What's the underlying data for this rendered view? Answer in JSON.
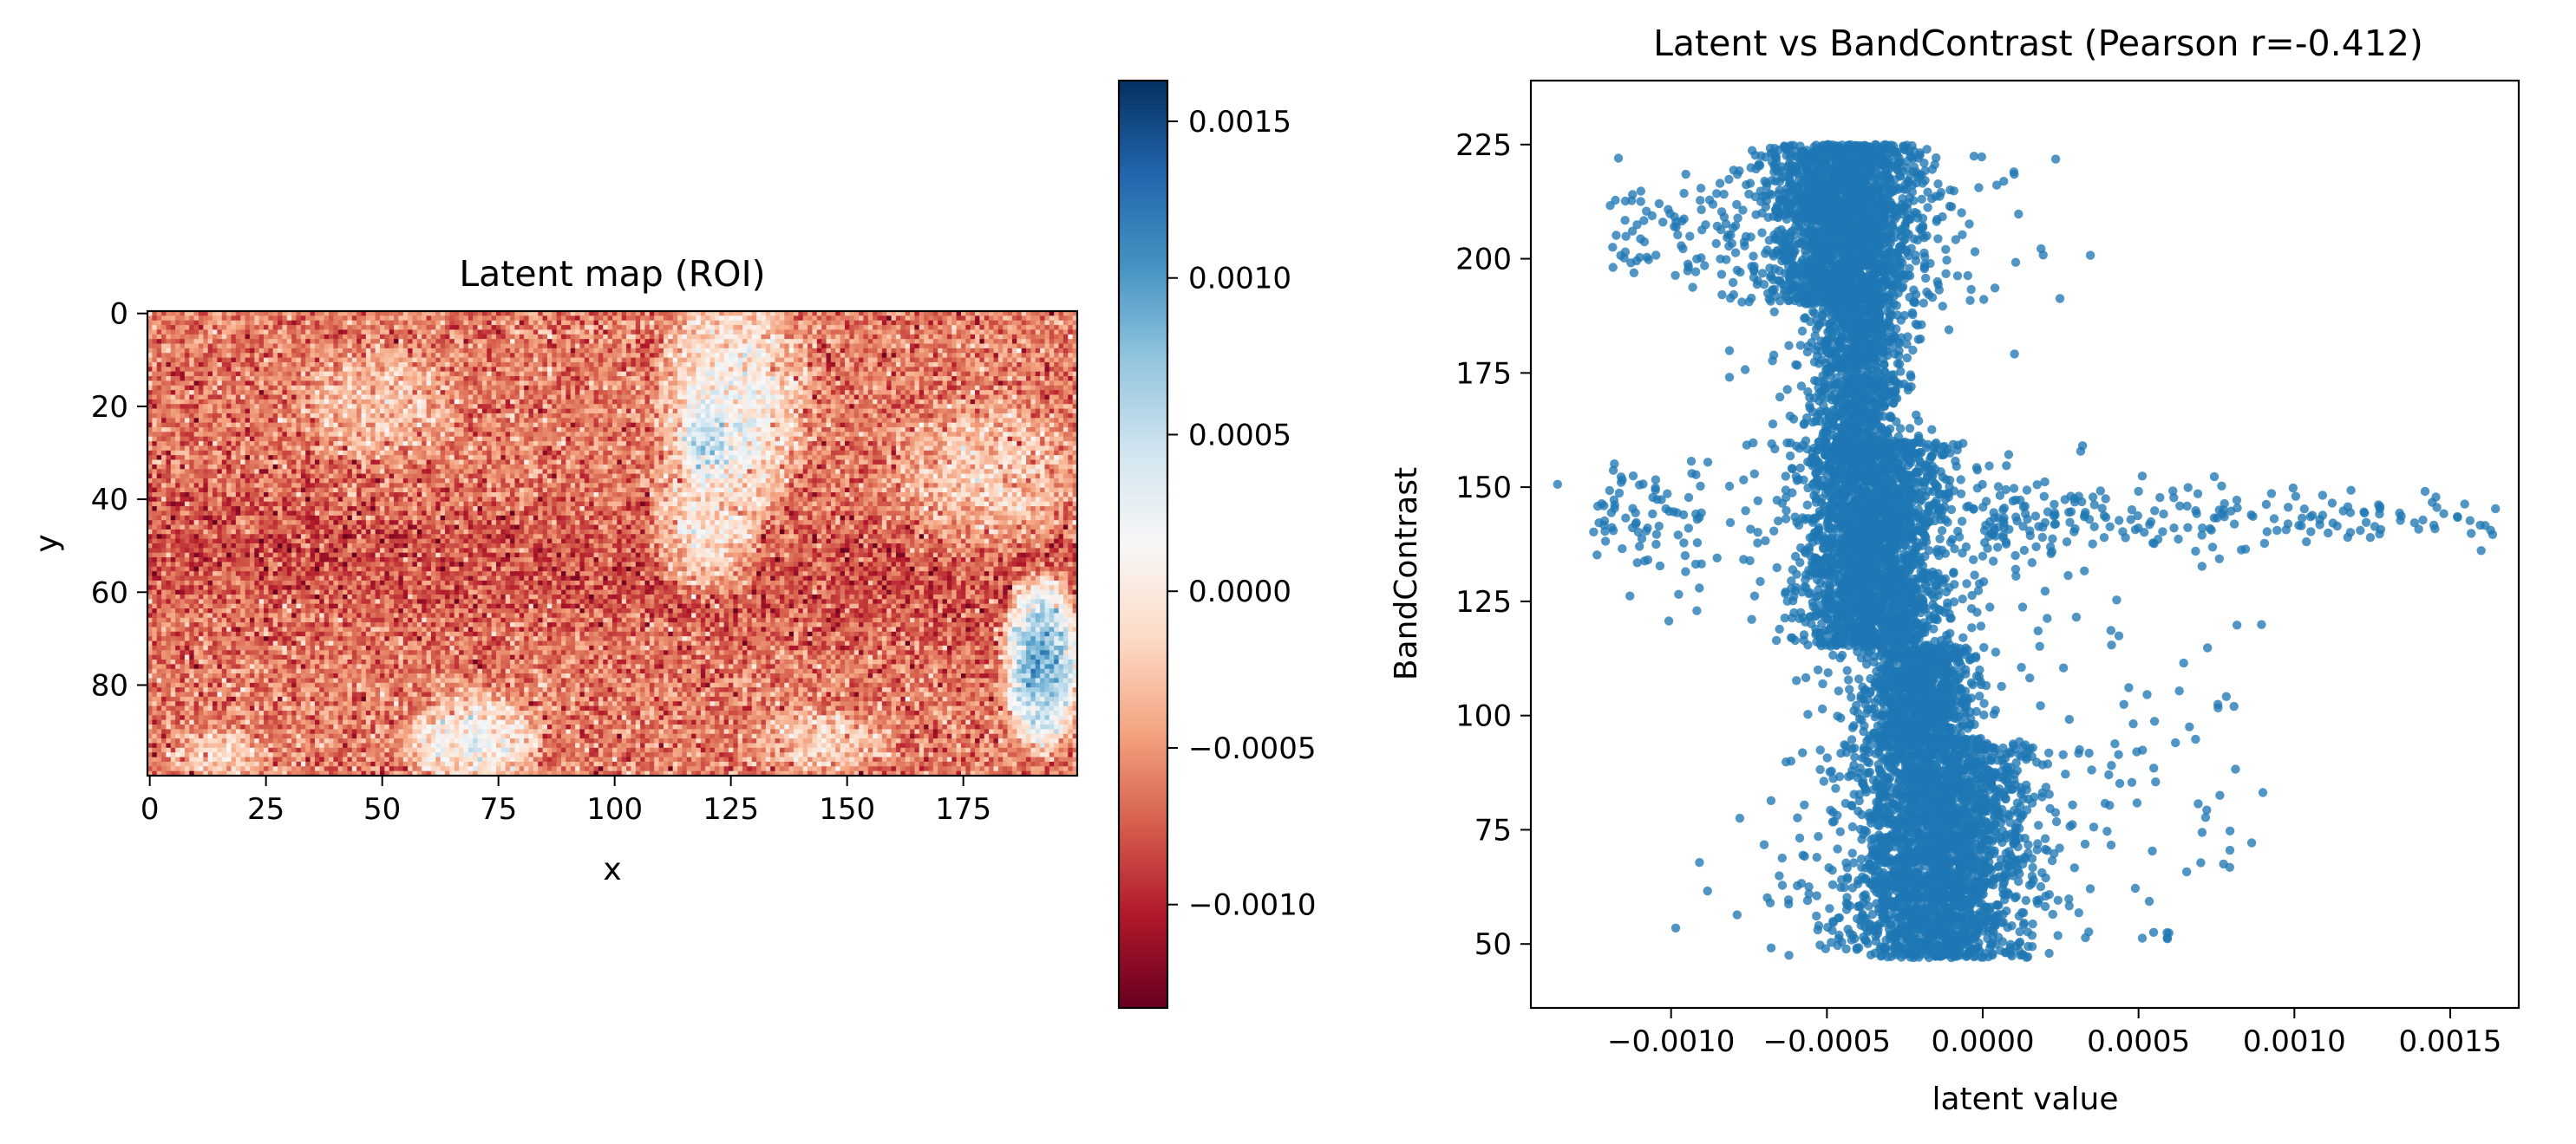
{
  "chart_data": [
    {
      "type": "heatmap",
      "title": "Latent map (ROI)",
      "xlabel": "x",
      "ylabel": "y",
      "x_range": [
        0,
        199
      ],
      "y_range": [
        0,
        99
      ],
      "y_axis_inverted": true,
      "x_ticks": [
        "0",
        "25",
        "50",
        "75",
        "100",
        "125",
        "150",
        "175"
      ],
      "y_ticks": [
        "0",
        "20",
        "40",
        "60",
        "80"
      ],
      "colormap": "RdBu",
      "colormap_stops": [
        "#67001f",
        "#b2182b",
        "#d6604d",
        "#f4a582",
        "#fddbc7",
        "#f7f7f7",
        "#d1e5f0",
        "#92c5de",
        "#4393c3",
        "#2166ac",
        "#053061"
      ],
      "color_range": [
        -0.00133,
        0.00163
      ],
      "colorbar_ticks": [
        "−0.0010",
        "−0.0005",
        "0.0000",
        "0.0005",
        "0.0010",
        "0.0015"
      ],
      "colorbar_tick_values": [
        -0.001,
        -0.0005,
        0.0,
        0.0005,
        0.001,
        0.0015
      ],
      "grid": false,
      "regions": [
        {
          "description": "near-zero / white",
          "x": [
            105,
            140
          ],
          "y": [
            0,
            60
          ],
          "value": 0.0
        },
        {
          "description": "near-zero / white",
          "x": [
            55,
            85
          ],
          "y": [
            75,
            99
          ],
          "value": 0.0
        },
        {
          "description": "light blue",
          "x": [
            115,
            130
          ],
          "y": [
            20,
            45
          ],
          "value": 0.0004
        },
        {
          "description": "blue streaks",
          "x": [
            185,
            199
          ],
          "y": [
            58,
            99
          ],
          "value": 0.001
        }
      ],
      "background_value": -0.0006
    },
    {
      "type": "scatter",
      "title": "Latent vs BandContrast (Pearson r=-0.412)",
      "xlabel": "latent value",
      "ylabel": "BandContrast",
      "xlim": [
        -0.00145,
        0.00172
      ],
      "ylim": [
        36,
        239
      ],
      "x_ticks": [
        "−0.0010",
        "−0.0005",
        "0.0000",
        "0.0005",
        "0.0010",
        "0.0015"
      ],
      "x_tick_values": [
        -0.001,
        -0.0005,
        0.0,
        0.0005,
        0.001,
        0.0015
      ],
      "y_ticks": [
        "50",
        "75",
        "100",
        "125",
        "150",
        "175",
        "200",
        "225"
      ],
      "y_tick_values": [
        50,
        75,
        100,
        125,
        150,
        175,
        200,
        225
      ],
      "color": "#1f77b4",
      "grid": false,
      "pearson_r": -0.412,
      "clusters": [
        {
          "x_center": -0.00045,
          "x_spread": 0.00022,
          "y_range": [
            190,
            225
          ],
          "description": "upper cluster"
        },
        {
          "x_center": -0.0004,
          "x_spread": 0.00013,
          "y_range": [
            158,
            190
          ],
          "description": "upper neck"
        },
        {
          "x_center": -0.00035,
          "x_spread": 0.0002,
          "y_range": [
            115,
            160
          ],
          "description": "middle cluster"
        },
        {
          "x_center": -0.0002,
          "x_spread": 0.00015,
          "y_range": [
            95,
            115
          ],
          "description": "lower neck"
        },
        {
          "x_center": -0.00015,
          "x_spread": 0.00025,
          "y_range": [
            47,
            95
          ],
          "description": "lower cluster"
        },
        {
          "x_from": 0.0,
          "x_to": 0.00165,
          "y_center": 143,
          "description": "horizontal tail at y≈143"
        }
      ]
    }
  ]
}
